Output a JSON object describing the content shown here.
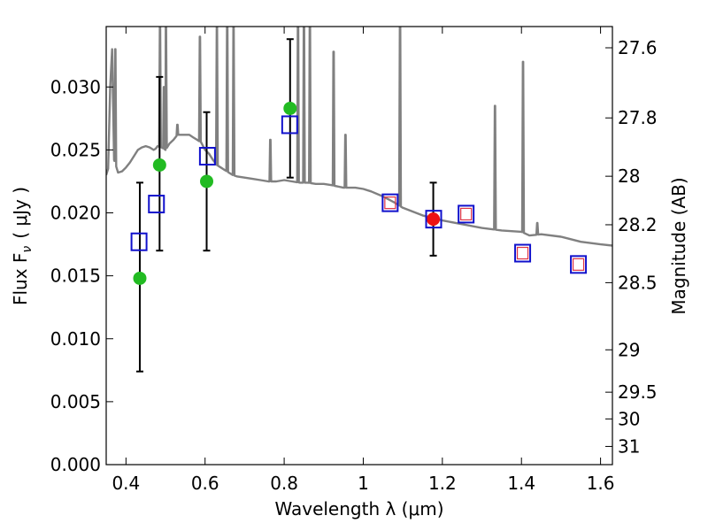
{
  "chart_data": {
    "type": "scatter",
    "xlabel": "Wavelength  λ (μm)",
    "ylabel": "Flux  F",
    "ylabel_subscript": "ν",
    "ylabel_unit": "( μJy )",
    "y2label": "Magnitude (AB)",
    "xlim": [
      0.35,
      1.63
    ],
    "ylim": [
      0.0,
      0.0348
    ],
    "x_ticks": [
      0.4,
      0.6,
      0.8,
      1.0,
      1.2,
      1.4,
      1.6
    ],
    "x_tick_labels": [
      "0.4",
      "0.6",
      "0.8",
      "1",
      "1.2",
      "1.4",
      "1.6"
    ],
    "y_ticks": [
      0.0,
      0.005,
      0.01,
      0.015,
      0.02,
      0.025,
      0.03
    ],
    "y_tick_labels": [
      "0.000",
      "0.005",
      "0.010",
      "0.015",
      "0.020",
      "0.025",
      "0.030"
    ],
    "y2_ticks": [
      27.6,
      27.8,
      28.0,
      28.2,
      28.5,
      29.0,
      29.5,
      30.0,
      31.0
    ],
    "y2_tick_labels": [
      "27.6",
      "27.8",
      "28",
      "28.2",
      "28.5",
      "29",
      "29.5",
      "30",
      "31"
    ],
    "grid": false,
    "legend": "none",
    "colors": {
      "model_spectrum": "#808080",
      "observed_points": "#22bb22",
      "highlight_point": "#ee1111",
      "model_photometry": "#1111cc",
      "inner_square": "#dd3344",
      "error_bars": "#000000"
    },
    "series": [
      {
        "kind": "spectrum",
        "x": [
          0.35,
          0.355,
          0.36,
          0.365,
          0.37,
          0.38,
          0.39,
          0.4,
          0.41,
          0.42,
          0.43,
          0.44,
          0.45,
          0.46,
          0.47,
          0.475,
          0.48,
          0.49,
          0.5,
          0.51,
          0.52,
          0.53,
          0.54,
          0.55,
          0.56,
          0.57,
          0.58,
          0.59,
          0.6,
          0.61,
          0.62,
          0.63,
          0.64,
          0.65,
          0.66,
          0.67,
          0.68,
          0.7,
          0.72,
          0.74,
          0.76,
          0.78,
          0.8,
          0.82,
          0.84,
          0.86,
          0.88,
          0.9,
          0.92,
          0.95,
          0.98,
          1.0,
          1.02,
          1.05,
          1.08,
          1.1,
          1.15,
          1.2,
          1.25,
          1.3,
          1.35,
          1.4,
          1.42,
          1.45,
          1.5,
          1.55,
          1.6,
          1.63
        ],
        "y": [
          0.023,
          0.0235,
          0.03,
          0.033,
          0.0242,
          0.0232,
          0.0233,
          0.0236,
          0.024,
          0.0245,
          0.025,
          0.0252,
          0.0253,
          0.0252,
          0.025,
          0.0251,
          0.0253,
          0.0252,
          0.025,
          0.0255,
          0.0258,
          0.0262,
          0.0262,
          0.0262,
          0.0262,
          0.026,
          0.0258,
          0.0256,
          0.025,
          0.0247,
          0.0242,
          0.0238,
          0.0236,
          0.0234,
          0.0232,
          0.023,
          0.0229,
          0.0228,
          0.0227,
          0.0226,
          0.0225,
          0.0225,
          0.0226,
          0.0225,
          0.0224,
          0.0224,
          0.0223,
          0.0223,
          0.0222,
          0.022,
          0.022,
          0.0219,
          0.0217,
          0.0213,
          0.0208,
          0.0204,
          0.0198,
          0.0194,
          0.0191,
          0.0188,
          0.0186,
          0.0185,
          0.0182,
          0.0183,
          0.0181,
          0.0177,
          0.0175,
          0.0174
        ],
        "emission_lines": [
          {
            "x": 0.373,
            "peak": 0.033
          },
          {
            "x": 0.486,
            "peak": 0.0348
          },
          {
            "x": 0.501,
            "peak": 0.0348
          },
          {
            "x": 0.496,
            "peak": 0.03
          },
          {
            "x": 0.53,
            "peak": 0.027
          },
          {
            "x": 0.587,
            "peak": 0.034
          },
          {
            "x": 0.63,
            "peak": 0.0348
          },
          {
            "x": 0.656,
            "peak": 0.0348
          },
          {
            "x": 0.672,
            "peak": 0.0348
          },
          {
            "x": 0.765,
            "peak": 0.0258
          },
          {
            "x": 0.835,
            "peak": 0.0348
          },
          {
            "x": 0.85,
            "peak": 0.0348
          },
          {
            "x": 0.865,
            "peak": 0.0348
          },
          {
            "x": 0.925,
            "peak": 0.0328
          },
          {
            "x": 0.955,
            "peak": 0.0262
          },
          {
            "x": 1.093,
            "peak": 0.0348
          },
          {
            "x": 1.333,
            "peak": 0.0285
          },
          {
            "x": 1.404,
            "peak": 0.032
          },
          {
            "x": 1.44,
            "peak": 0.0192
          }
        ]
      },
      {
        "kind": "observed",
        "marker": "filled-circle",
        "x": [
          0.435,
          0.485,
          0.604,
          0.815
        ],
        "y": [
          0.0148,
          0.0238,
          0.0225,
          0.0283
        ],
        "err_low": [
          0.0074,
          0.017,
          0.017,
          0.0228
        ],
        "err_high": [
          0.0224,
          0.0308,
          0.028,
          0.0338
        ]
      },
      {
        "kind": "observed-highlight",
        "marker": "filled-circle",
        "x": [
          1.177
        ],
        "y": [
          0.0195
        ],
        "err_low": [
          0.0166
        ],
        "err_high": [
          0.0224
        ]
      },
      {
        "kind": "model-photometry",
        "marker": "open-square",
        "x": [
          0.433,
          0.477,
          0.606,
          0.814,
          1.068,
          1.178,
          1.26,
          1.403,
          1.544
        ],
        "y": [
          0.0177,
          0.0207,
          0.0245,
          0.027,
          0.0208,
          0.0195,
          0.0199,
          0.0168,
          0.0159
        ]
      },
      {
        "kind": "model-inner",
        "marker": "small-open-square",
        "x": [
          1.068,
          1.26,
          1.403,
          1.544
        ],
        "y": [
          0.0208,
          0.0199,
          0.0168,
          0.0159
        ]
      }
    ]
  }
}
